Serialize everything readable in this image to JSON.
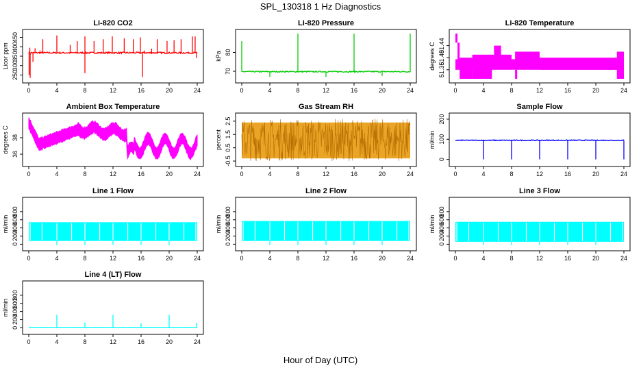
{
  "title": "SPL_130318  1 Hz Diagnostics",
  "xlabel": "Hour of Day (UTC)",
  "chart_data": [
    {
      "type": "line",
      "title": "Li-820 CO2",
      "ylabel": "Licor ppm",
      "color": "#ff0000",
      "ylim": [
        230,
        470
      ],
      "yticks": [
        250,
        300,
        350,
        400,
        450
      ],
      "xticks": [
        0,
        4,
        8,
        12,
        16,
        20,
        24
      ],
      "xlim": [
        0,
        24
      ],
      "pattern": "spikes",
      "base": 368,
      "noise": 4,
      "spikes_up": [
        [
          0.15,
          395
        ],
        [
          0.9,
          392
        ],
        [
          1.6,
          380
        ],
        [
          2.0,
          440
        ],
        [
          4.0,
          460
        ],
        [
          5.9,
          410
        ],
        [
          6.9,
          430
        ],
        [
          8.0,
          455
        ],
        [
          9.3,
          430
        ],
        [
          10.6,
          440
        ],
        [
          11.9,
          455
        ],
        [
          13.6,
          445
        ],
        [
          14.9,
          440
        ],
        [
          15.9,
          450
        ],
        [
          16.5,
          380
        ],
        [
          17.5,
          390
        ],
        [
          18.3,
          440
        ],
        [
          19.7,
          430
        ],
        [
          20.7,
          435
        ],
        [
          21.7,
          440
        ],
        [
          23.3,
          455
        ],
        [
          23.7,
          455
        ]
      ],
      "spikes_down": [
        [
          0.05,
          250
        ],
        [
          0.2,
          235
        ],
        [
          0.6,
          320
        ],
        [
          8.0,
          260
        ],
        [
          16.2,
          240
        ],
        [
          23.9,
          340
        ]
      ]
    },
    {
      "type": "line",
      "title": "Li-820 Pressure",
      "ylabel": "kPa",
      "color": "#00cc00",
      "ylim": [
        66,
        90
      ],
      "yticks": [
        70,
        80
      ],
      "xticks": [
        0,
        4,
        8,
        12,
        16,
        20,
        24
      ],
      "xlim": [
        0,
        24
      ],
      "pattern": "spikes",
      "base": 69.8,
      "noise": 0.3,
      "spikes_up": [
        [
          0.0,
          86
        ],
        [
          8.0,
          90
        ],
        [
          16.0,
          90
        ],
        [
          24.0,
          90
        ]
      ],
      "spikes_down": [
        [
          4.0,
          67
        ],
        [
          12.0,
          67
        ],
        [
          20.0,
          67.5
        ]
      ]
    },
    {
      "type": "line",
      "title": "Li-820 Temperature",
      "ylabel": "degrees C",
      "color": "#ff00ff",
      "ylim": [
        51.33,
        51.48
      ],
      "ytick_labels": [
        "51.36",
        "51.40",
        "51.44"
      ],
      "yticks": [
        51.36,
        51.4,
        51.44
      ],
      "xticks": [
        0,
        4,
        8,
        12,
        16,
        20,
        24
      ],
      "xlim": [
        0,
        24
      ],
      "pattern": "blocks"
    },
    {
      "type": "line",
      "title": "Ambient Box Temperature",
      "ylabel": "degrees C",
      "color": "#ff00ff",
      "ylim": [
        35,
        40.5
      ],
      "yticks": [
        36,
        38
      ],
      "xticks": [
        0,
        4,
        8,
        12,
        16,
        20,
        24
      ],
      "xlim": [
        0,
        24
      ],
      "pattern": "ambient"
    },
    {
      "type": "line",
      "title": "Gas Stream RH",
      "ylabel": "percent",
      "color": "#e69500",
      "ylim": [
        -0.6,
        2.8
      ],
      "yticks": [
        -0.5,
        0.5,
        1.5,
        2.5
      ],
      "xticks": [
        0,
        4,
        8,
        12,
        16,
        20,
        24
      ],
      "xlim": [
        0,
        24
      ],
      "pattern": "rh"
    },
    {
      "type": "line",
      "title": "Sample Flow",
      "ylabel": "ml/min",
      "color": "#0000ff",
      "ylim": [
        -15,
        210
      ],
      "yticks": [
        0,
        100,
        200
      ],
      "xticks": [
        0,
        4,
        8,
        12,
        16,
        20,
        24
      ],
      "xlim": [
        0,
        24
      ],
      "pattern": "spikes",
      "base": 95,
      "noise": 2,
      "spikes_up": [],
      "spikes_down": [
        [
          4.0,
          0
        ],
        [
          8.0,
          0
        ],
        [
          12.0,
          0
        ],
        [
          16.0,
          0
        ],
        [
          20.0,
          0
        ],
        [
          24.0,
          0
        ]
      ]
    },
    {
      "type": "line",
      "title": "Line 1 Flow",
      "ylabel": "ml/min",
      "color": "#00ffff",
      "ylim": [
        -60,
        1050
      ],
      "yticks": [
        0,
        200,
        400,
        600,
        800
      ],
      "xticks": [
        0,
        4,
        8,
        12,
        16,
        20,
        24
      ],
      "xlim": [
        0,
        24
      ],
      "pattern": "band",
      "lo": 80,
      "hi": 540
    },
    {
      "type": "line",
      "title": "Line 2 Flow",
      "ylabel": "ml/min",
      "color": "#00ffff",
      "ylim": [
        -60,
        1050
      ],
      "yticks": [
        0,
        200,
        400,
        600,
        800
      ],
      "xticks": [
        0,
        4,
        8,
        12,
        16,
        20,
        24
      ],
      "xlim": [
        0,
        24
      ],
      "pattern": "band",
      "lo": 80,
      "hi": 570
    },
    {
      "type": "line",
      "title": "Line 3 Flow",
      "ylabel": "ml/min",
      "color": "#00ffff",
      "ylim": [
        -60,
        1050
      ],
      "yticks": [
        0,
        200,
        400,
        600,
        800
      ],
      "xticks": [
        0,
        4,
        8,
        12,
        16,
        20,
        24
      ],
      "xlim": [
        0,
        24
      ],
      "pattern": "band",
      "lo": 60,
      "hi": 550
    },
    {
      "type": "line",
      "title": "Line 4 (LT) Flow",
      "ylabel": "ml/min",
      "color": "#00ffff",
      "ylim": [
        -60,
        1050
      ],
      "yticks": [
        0,
        200,
        400,
        600,
        800
      ],
      "xticks": [
        0,
        4,
        8,
        12,
        16,
        20,
        24
      ],
      "xlim": [
        0,
        24
      ],
      "pattern": "spikes",
      "base": 10,
      "noise": 3,
      "spikes_up": [
        [
          4.0,
          320
        ],
        [
          8.0,
          130
        ],
        [
          12.0,
          320
        ],
        [
          16.0,
          110
        ],
        [
          20.0,
          320
        ],
        [
          23.9,
          120
        ]
      ],
      "spikes_down": []
    }
  ]
}
